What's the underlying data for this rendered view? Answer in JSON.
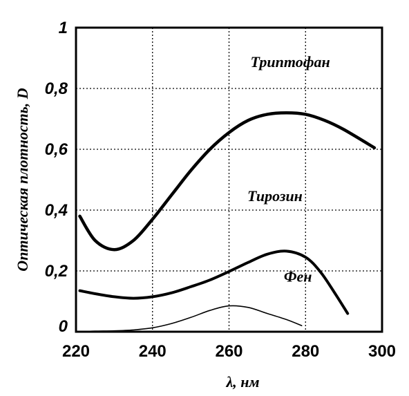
{
  "chart_data": {
    "type": "line",
    "xlabel": "λ, нм",
    "ylabel": "Оптическая плотность, D",
    "xlim": [
      220,
      300
    ],
    "ylim": [
      0,
      1
    ],
    "x_ticks": [
      "220",
      "240",
      "260",
      "280",
      "300"
    ],
    "y_ticks": [
      "0",
      "0,2",
      "0,4",
      "0,6",
      "0,8",
      "1"
    ],
    "grid": true,
    "series": [
      {
        "name": "Триптофан",
        "x": [
          221,
          225,
          230,
          235,
          240,
          245,
          250,
          255,
          260,
          265,
          270,
          275,
          280,
          285,
          290,
          298
        ],
        "y": [
          0.38,
          0.3,
          0.27,
          0.3,
          0.37,
          0.45,
          0.53,
          0.6,
          0.655,
          0.695,
          0.715,
          0.72,
          0.715,
          0.695,
          0.665,
          0.605
        ]
      },
      {
        "name": "Тирозин",
        "x": [
          221,
          225,
          230,
          235,
          240,
          245,
          250,
          255,
          260,
          265,
          270,
          275,
          280,
          284,
          288,
          291
        ],
        "y": [
          0.135,
          0.125,
          0.115,
          0.11,
          0.115,
          0.128,
          0.148,
          0.17,
          0.198,
          0.228,
          0.255,
          0.265,
          0.245,
          0.195,
          0.12,
          0.06
        ]
      },
      {
        "name": "Фен",
        "x": [
          221,
          225,
          230,
          235,
          240,
          245,
          250,
          255,
          260,
          265,
          270,
          275,
          279
        ],
        "y": [
          0.0,
          0.002,
          0.003,
          0.006,
          0.013,
          0.027,
          0.047,
          0.07,
          0.085,
          0.08,
          0.06,
          0.04,
          0.02
        ]
      }
    ]
  }
}
